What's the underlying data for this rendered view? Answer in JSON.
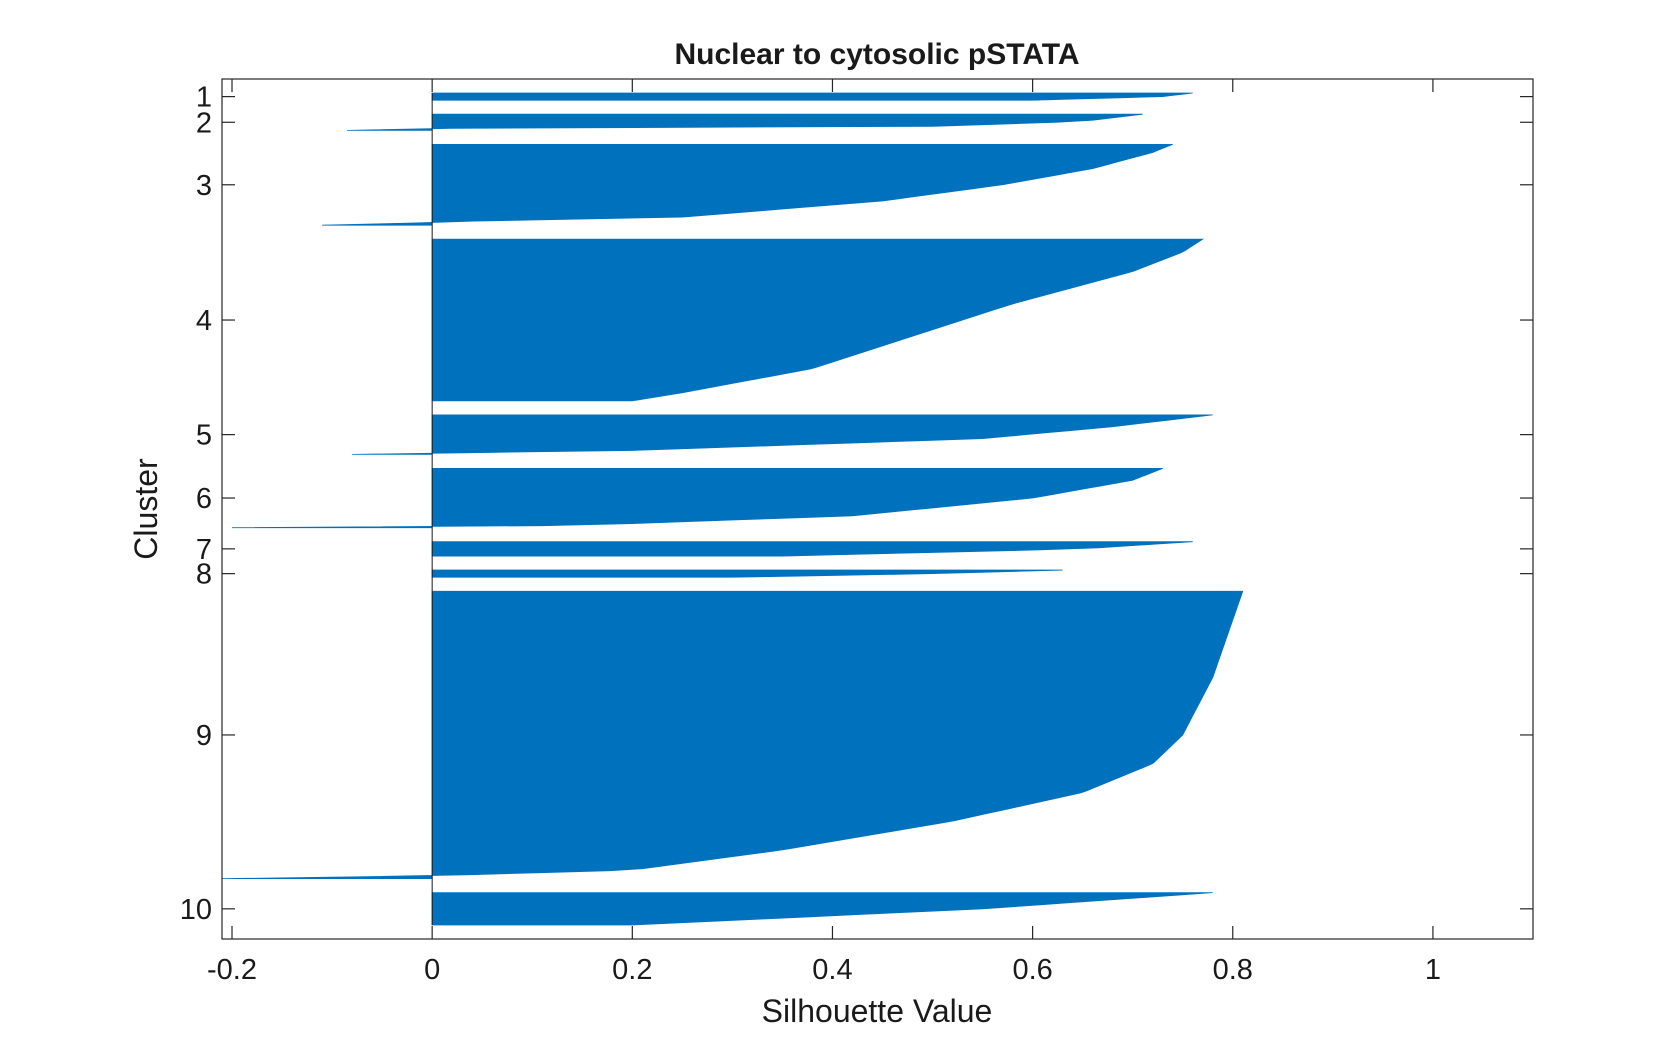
{
  "chart_data": {
    "type": "silhouette",
    "title": "Nuclear to cytosolic pSTATA",
    "xlabel": "Silhouette Value",
    "ylabel": "Cluster",
    "xlim": [
      -0.21,
      1.1
    ],
    "grid": false,
    "bar_color": "#0072BD",
    "x_ticks": [
      {
        "value": -0.2,
        "label": "-0.2"
      },
      {
        "value": 0,
        "label": "0"
      },
      {
        "value": 0.2,
        "label": "0.2"
      },
      {
        "value": 0.4,
        "label": "0.4"
      },
      {
        "value": 0.6,
        "label": "0.6"
      },
      {
        "value": 0.8,
        "label": "0.8"
      },
      {
        "value": 1,
        "label": "1"
      }
    ],
    "clusters": [
      {
        "label": "1",
        "count": 4,
        "silhouette_profile": [
          [
            0,
            0.76
          ],
          [
            0.5,
            0.73
          ],
          [
            1,
            0.6
          ]
        ]
      },
      {
        "label": "2",
        "count": 9,
        "silhouette_profile": [
          [
            0,
            0.71
          ],
          [
            0.45,
            0.65
          ],
          [
            0.75,
            0.5
          ],
          [
            0.88,
            0.0
          ],
          [
            0.9,
            -0.04
          ],
          [
            1,
            -0.085
          ]
        ]
      },
      {
        "label": "3",
        "count": 45,
        "silhouette_profile": [
          [
            0,
            0.74
          ],
          [
            0.1,
            0.72
          ],
          [
            0.3,
            0.66
          ],
          [
            0.5,
            0.57
          ],
          [
            0.7,
            0.45
          ],
          [
            0.9,
            0.25
          ],
          [
            0.96,
            0.0
          ],
          [
            0.985,
            -0.04
          ],
          [
            1,
            -0.11
          ]
        ]
      },
      {
        "label": "4",
        "count": 90,
        "silhouette_profile": [
          [
            0,
            0.77
          ],
          [
            0.08,
            0.75
          ],
          [
            0.2,
            0.7
          ],
          [
            0.4,
            0.58
          ],
          [
            0.6,
            0.48
          ],
          [
            0.8,
            0.38
          ],
          [
            0.95,
            0.25
          ],
          [
            1,
            0.2
          ]
        ]
      },
      {
        "label": "5",
        "count": 22,
        "silhouette_profile": [
          [
            0,
            0.78
          ],
          [
            0.3,
            0.68
          ],
          [
            0.6,
            0.55
          ],
          [
            0.9,
            0.2
          ],
          [
            0.97,
            0.0
          ],
          [
            1,
            -0.08
          ]
        ]
      },
      {
        "label": "6",
        "count": 33,
        "silhouette_profile": [
          [
            0,
            0.73
          ],
          [
            0.2,
            0.7
          ],
          [
            0.5,
            0.6
          ],
          [
            0.8,
            0.42
          ],
          [
            0.96,
            0.15
          ],
          [
            0.985,
            0.0
          ],
          [
            1,
            -0.2
          ]
        ]
      },
      {
        "label": "7",
        "count": 8,
        "silhouette_profile": [
          [
            0,
            0.76
          ],
          [
            0.5,
            0.65
          ],
          [
            1,
            0.35
          ]
        ]
      },
      {
        "label": "8",
        "count": 4,
        "silhouette_profile": [
          [
            0,
            0.63
          ],
          [
            0.5,
            0.5
          ],
          [
            1,
            0.3
          ]
        ]
      },
      {
        "label": "9",
        "count": 160,
        "silhouette_profile": [
          [
            0,
            0.81
          ],
          [
            0.1,
            0.8
          ],
          [
            0.3,
            0.78
          ],
          [
            0.5,
            0.75
          ],
          [
            0.6,
            0.72
          ],
          [
            0.7,
            0.65
          ],
          [
            0.8,
            0.52
          ],
          [
            0.9,
            0.35
          ],
          [
            0.97,
            0.2
          ],
          [
            0.99,
            0.0
          ],
          [
            1,
            -0.21
          ]
        ]
      },
      {
        "label": "10",
        "count": 18,
        "silhouette_profile": [
          [
            0,
            0.78
          ],
          [
            0.5,
            0.55
          ],
          [
            1,
            0.2
          ]
        ]
      }
    ]
  }
}
